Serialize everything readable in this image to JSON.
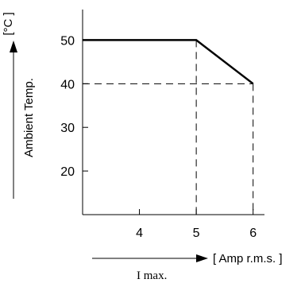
{
  "chart_data": {
    "type": "line",
    "title": "",
    "ylabel": "Ambient Temp.",
    "yunit": "[°C ]",
    "xlabel": "I max.",
    "xunit": "[ Amp r.m.s. ]",
    "yticks": [
      20,
      30,
      40,
      50
    ],
    "xticks": [
      4,
      5,
      6
    ],
    "xlim": [
      3.0,
      6.2
    ],
    "ylim": [
      10,
      57
    ],
    "grid": false,
    "legend": "none",
    "series": [
      {
        "x": [
          3.0,
          5,
          6
        ],
        "y": [
          50,
          50,
          40
        ]
      }
    ],
    "reference_lines": [
      {
        "type": "vertical",
        "x": 5,
        "from_y": 50
      },
      {
        "type": "vertical",
        "x": 6,
        "from_y": 40
      },
      {
        "type": "horizontal",
        "y": 40,
        "to_x": 6
      }
    ]
  }
}
